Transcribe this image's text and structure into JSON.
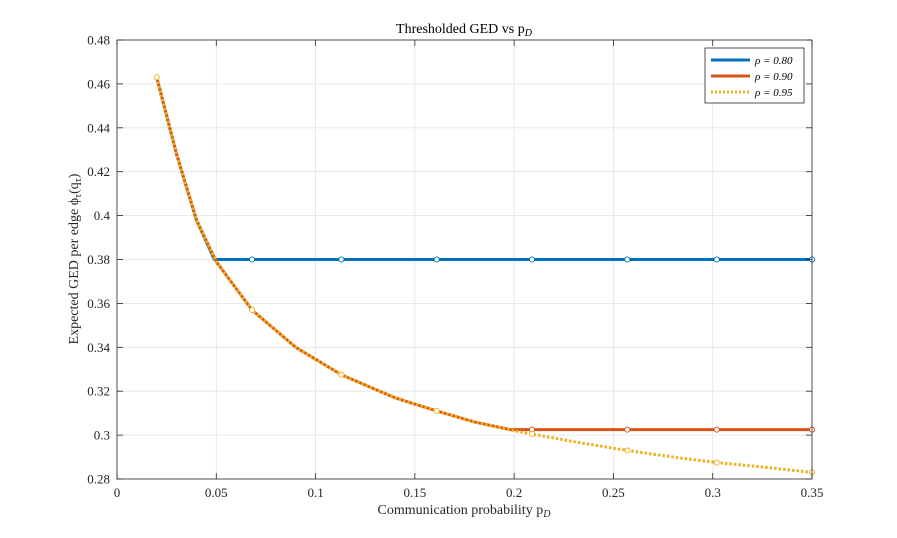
{
  "chart_data": {
    "type": "line",
    "title": "Thresholded GED vs p",
    "title_sub": "D",
    "xlabel": "Communication probability p",
    "xlabel_sub": "D",
    "ylabel": "Expected GED per edge ϕ",
    "ylabel_sub": "τ",
    "ylabel_tail": "(q",
    "ylabel_tail_sub": "τ",
    "ylabel_close": ")",
    "xlim": [
      0,
      0.35
    ],
    "ylim": [
      0.28,
      0.48
    ],
    "x_ticks": [
      0,
      0.05,
      0.1,
      0.15,
      0.2,
      0.25,
      0.3,
      0.35
    ],
    "x_tick_labels": [
      "0",
      "0.05",
      "0.1",
      "0.15",
      "0.2",
      "0.25",
      "0.3",
      "0.35"
    ],
    "y_ticks": [
      0.28,
      0.3,
      0.32,
      0.34,
      0.36,
      0.38,
      0.4,
      0.42,
      0.44,
      0.46,
      0.48
    ],
    "y_tick_labels": [
      "0.28",
      "0.3",
      "0.32",
      "0.34",
      "0.36",
      "0.38",
      "0.4",
      "0.42",
      "0.44",
      "0.46",
      "0.48"
    ],
    "grid": true,
    "legend_position": "top-right",
    "series": [
      {
        "name": "ρ = 0.80",
        "color": "#0072BD",
        "style": "solid",
        "x": [
          0.02,
          0.03,
          0.04,
          0.049,
          0.068,
          0.113,
          0.161,
          0.209,
          0.257,
          0.302,
          0.35
        ],
        "y": [
          0.463,
          0.428,
          0.398,
          0.38,
          0.38,
          0.38,
          0.38,
          0.38,
          0.38,
          0.38,
          0.38
        ],
        "markers_x": [
          0.068,
          0.113,
          0.161,
          0.209,
          0.257,
          0.302,
          0.35
        ],
        "markers_y": [
          0.38,
          0.38,
          0.38,
          0.38,
          0.38,
          0.38,
          0.38
        ]
      },
      {
        "name": "ρ = 0.90",
        "color": "#D95319",
        "style": "solid",
        "x": [
          0.02,
          0.03,
          0.04,
          0.05,
          0.068,
          0.09,
          0.113,
          0.14,
          0.161,
          0.18,
          0.198,
          0.209,
          0.257,
          0.302,
          0.35
        ],
        "y": [
          0.463,
          0.428,
          0.398,
          0.379,
          0.357,
          0.34,
          0.3275,
          0.317,
          0.311,
          0.306,
          0.3025,
          0.3025,
          0.3025,
          0.3025,
          0.3025
        ],
        "markers_x": [
          0.209,
          0.257,
          0.302,
          0.35
        ],
        "markers_y": [
          0.3025,
          0.3025,
          0.3025,
          0.3025
        ]
      },
      {
        "name": "ρ = 0.95",
        "color": "#EDB120",
        "style": "dotted",
        "x": [
          0.02,
          0.03,
          0.04,
          0.05,
          0.068,
          0.09,
          0.113,
          0.14,
          0.161,
          0.18,
          0.2,
          0.209,
          0.23,
          0.257,
          0.28,
          0.302,
          0.33,
          0.35
        ],
        "y": [
          0.463,
          0.428,
          0.398,
          0.379,
          0.357,
          0.34,
          0.3275,
          0.317,
          0.311,
          0.306,
          0.302,
          0.3005,
          0.297,
          0.293,
          0.29,
          0.2875,
          0.285,
          0.283
        ],
        "markers_x": [
          0.02,
          0.068,
          0.113,
          0.161,
          0.209,
          0.257,
          0.302,
          0.35
        ],
        "markers_y": [
          0.463,
          0.357,
          0.3275,
          0.311,
          0.3005,
          0.293,
          0.2875,
          0.283
        ]
      }
    ]
  }
}
